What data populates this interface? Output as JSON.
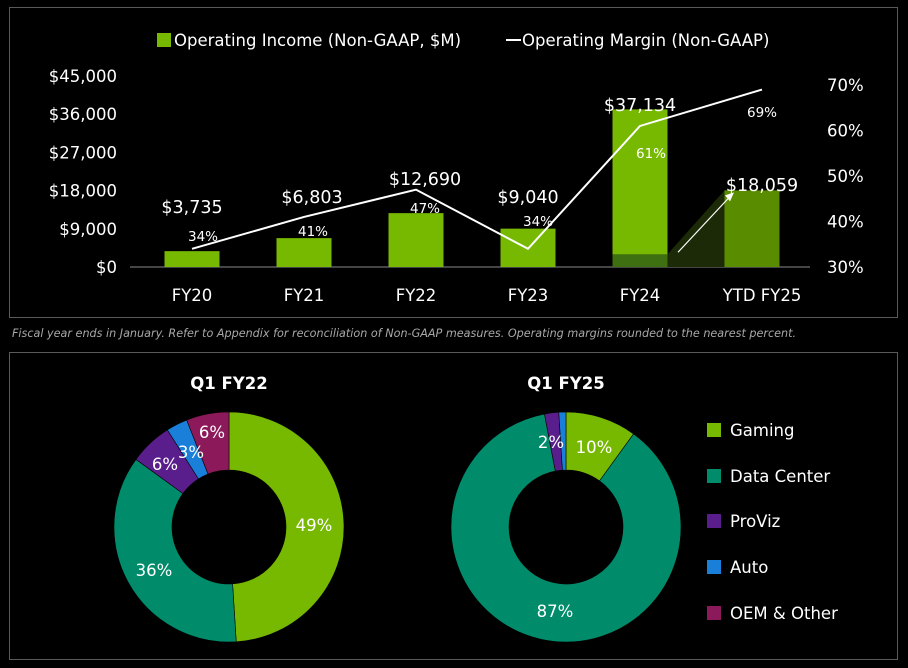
{
  "footnote": "Fiscal year ends in January. Refer to Appendix for reconciliation of Non-GAAP measures. Operating margins rounded to the nearest percent.",
  "colors": {
    "green": "#76b900",
    "dark_green": "#5a8c00",
    "teal": "#008c6a",
    "purple": "#5a1e8c",
    "blue": "#1a7fd8",
    "magenta": "#8c1a5a",
    "line": "#ffffff"
  },
  "chart_data": [
    {
      "type": "bar",
      "title": "",
      "categories": [
        "FY20",
        "FY21",
        "FY22",
        "FY23",
        "FY24",
        "YTD FY25"
      ],
      "series": [
        {
          "name": "Operating Income (Non-GAAP, $M)",
          "values": [
            3735,
            6803,
            12690,
            9040,
            37134,
            18059
          ],
          "labels": [
            "$3,735",
            "$6,803",
            "$12,690",
            "$9,040",
            "$37,134",
            "$18,059"
          ]
        },
        {
          "name": "Operating Margin (Non-GAAP)",
          "type": "line",
          "axis": "right",
          "values": [
            34,
            41,
            47,
            34,
            61,
            69
          ],
          "labels": [
            "34%",
            "41%",
            "47%",
            "34%",
            "61%",
            "69%"
          ]
        }
      ],
      "y_left": {
        "ticks": [
          "$45,000",
          "$36,000",
          "$27,000",
          "$18,000",
          "$9,000",
          "$0"
        ],
        "ylim": [
          0,
          45000
        ]
      },
      "y_right": {
        "ticks": [
          "70%",
          "60%",
          "50%",
          "40%",
          "30%"
        ],
        "ylim": [
          30,
          70
        ]
      },
      "fy24_base_value": 3000,
      "legend": "top"
    },
    {
      "type": "pie",
      "title": "Q1 FY22",
      "categories": [
        "Gaming",
        "Data Center",
        "ProViz",
        "Auto",
        "OEM & Other"
      ],
      "values": [
        49,
        36,
        6,
        3,
        6
      ],
      "labels": [
        "49%",
        "36%",
        "6%",
        "3%",
        "6%"
      ]
    },
    {
      "type": "pie",
      "title": "Q1 FY25",
      "categories": [
        "Gaming",
        "Data Center",
        "ProViz",
        "Auto",
        "OEM & Other"
      ],
      "values": [
        10,
        87,
        2,
        1,
        0
      ],
      "labels": [
        "10%",
        "87%",
        "2%",
        "",
        ""
      ]
    }
  ],
  "legend_items": [
    "Gaming",
    "Data Center",
    "ProViz",
    "Auto",
    "OEM & Other"
  ]
}
